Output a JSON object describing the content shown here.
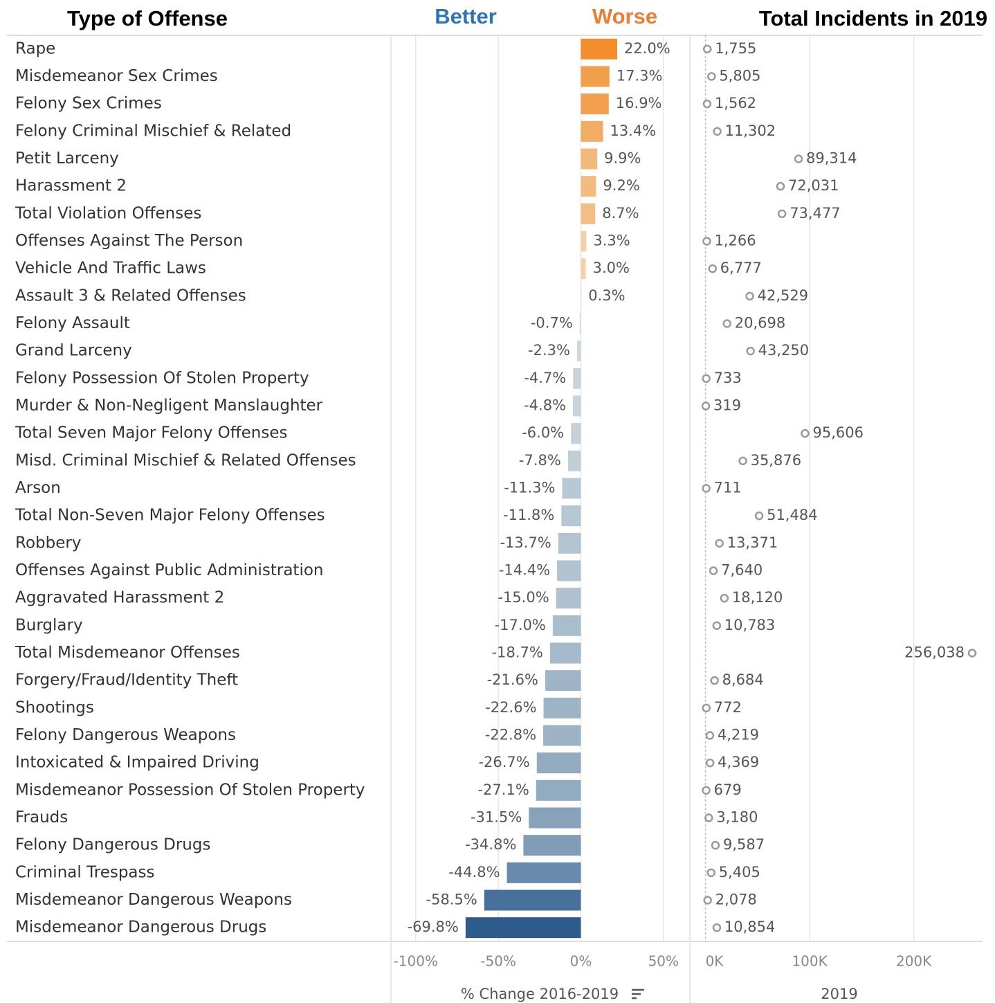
{
  "chart_data": [
    {
      "type": "bar",
      "category_header": "Type of Offense",
      "annotations": [
        "Better",
        "Worse"
      ],
      "xlabel": "% Change 2016-2019",
      "categories": [
        "Rape",
        "Misdemeanor Sex Crimes",
        "Felony Sex Crimes",
        "Felony Criminal Mischief & Related",
        "Petit Larceny",
        "Harassment 2",
        "Total Violation Offenses",
        "Offenses Against The Person",
        "Vehicle And Traffic Laws",
        "Assault 3 & Related Offenses",
        "Felony Assault",
        "Grand Larceny",
        "Felony Possession Of Stolen Property",
        "Murder & Non-Negligent Manslaughter",
        "Total Seven Major Felony Offenses",
        "Misd. Criminal Mischief & Related Offenses",
        "Arson",
        "Total Non-Seven Major Felony Offenses",
        "Robbery",
        "Offenses Against Public Administration",
        "Aggravated Harassment 2",
        "Burglary",
        "Total Misdemeanor Offenses",
        "Forgery/Fraud/Identity Theft",
        "Shootings",
        "Felony Dangerous Weapons",
        "Intoxicated & Impaired Driving",
        "Misdemeanor Possession Of Stolen Property",
        "Frauds",
        "Felony Dangerous Drugs",
        "Criminal Trespass",
        "Misdemeanor Dangerous Weapons",
        "Misdemeanor Dangerous Drugs"
      ],
      "values": [
        22.0,
        17.3,
        16.9,
        13.4,
        9.9,
        9.2,
        8.7,
        3.3,
        3.0,
        0.3,
        -0.7,
        -2.3,
        -4.7,
        -4.8,
        -6.0,
        -7.8,
        -11.3,
        -11.8,
        -13.7,
        -14.4,
        -15.0,
        -17.0,
        -18.7,
        -21.6,
        -22.6,
        -22.8,
        -26.7,
        -27.1,
        -31.5,
        -34.8,
        -44.8,
        -58.5,
        -69.8
      ],
      "value_labels": [
        "22.0%",
        "17.3%",
        "16.9%",
        "13.4%",
        "9.9%",
        "9.2%",
        "8.7%",
        "3.3%",
        "3.0%",
        "0.3%",
        "-0.7%",
        "-2.3%",
        "-4.7%",
        "-4.8%",
        "-6.0%",
        "-7.8%",
        "-11.3%",
        "-11.8%",
        "-13.7%",
        "-14.4%",
        "-15.0%",
        "-17.0%",
        "-18.7%",
        "-21.6%",
        "-22.6%",
        "-22.8%",
        "-26.7%",
        "-27.1%",
        "-31.5%",
        "-34.8%",
        "-44.8%",
        "-58.5%",
        "-69.8%"
      ],
      "xlim": [
        -115,
        66
      ],
      "xticks": [
        {
          "value": -100,
          "label": "-100%"
        },
        {
          "value": -50,
          "label": "-50%"
        },
        {
          "value": 0,
          "label": "0%"
        },
        {
          "value": 50,
          "label": "50%"
        }
      ],
      "grid": true,
      "color_scale": {
        "negative": "#2c5b8c",
        "zero_negative": "#d3dde2",
        "zero_positive": "#f4dcbc",
        "positive": "#f28e2b"
      },
      "annotation_colors": [
        "#2e75b6",
        "#ed7d31"
      ]
    },
    {
      "type": "dot",
      "title": "Total Incidents in 2019",
      "xlabel": "2019",
      "values": [
        1755,
        5805,
        1562,
        11302,
        89314,
        72031,
        73477,
        1266,
        6777,
        42529,
        20698,
        43250,
        733,
        319,
        95606,
        35876,
        711,
        51484,
        13371,
        7640,
        18120,
        10783,
        256038,
        8684,
        772,
        4219,
        4369,
        679,
        3180,
        9587,
        5405,
        2078,
        10854
      ],
      "value_labels": [
        "1,755",
        "5,805",
        "1,562",
        "11,302",
        "89,314",
        "72,031",
        "73,477",
        "1,266",
        "6,777",
        "42,529",
        "20,698",
        "43,250",
        "733",
        "319",
        "95,606",
        "35,876",
        "711",
        "51,484",
        "13,371",
        "7,640",
        "18,120",
        "10,783",
        "256,038",
        "8,684",
        "772",
        "4,219",
        "4,369",
        "679",
        "3,180",
        "9,587",
        "5,405",
        "2,078",
        "10,854"
      ],
      "xlim": [
        -15000,
        266000
      ],
      "xticks": [
        {
          "value": 0,
          "label": "0K"
        },
        {
          "value": 100000,
          "label": "100K"
        },
        {
          "value": 200000,
          "label": "200K"
        }
      ],
      "grid": true,
      "color": "#9a9a9a"
    }
  ]
}
